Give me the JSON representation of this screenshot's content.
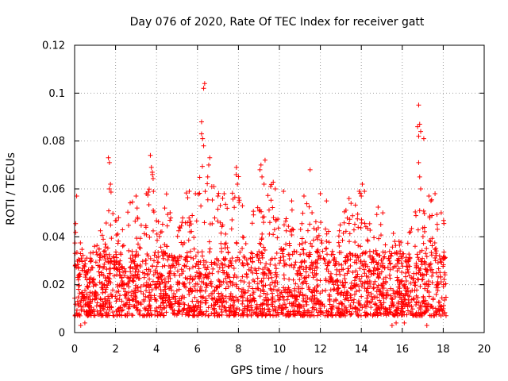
{
  "chart_data": {
    "type": "scatter",
    "title": "Day 076 of 2020, Rate Of TEC Index for receiver gatt",
    "xlabel": "GPS time / hours",
    "ylabel": "ROTI / TECUs",
    "xlim": [
      0,
      20
    ],
    "ylim": [
      0,
      0.12
    ],
    "xticks": [
      0,
      2,
      4,
      6,
      8,
      10,
      12,
      14,
      16,
      18,
      20
    ],
    "yticks": [
      0,
      0.02,
      0.04,
      0.06,
      0.08,
      0.1,
      0.12
    ],
    "xtick_labels": [
      "0",
      "2",
      "4",
      "6",
      "8",
      "10",
      "12",
      "14",
      "16",
      "18",
      "20"
    ],
    "ytick_labels": [
      "0",
      "0.02",
      "0.04",
      "0.06",
      "0.08",
      "0.1",
      "0.12"
    ],
    "grid": true,
    "marker": "+",
    "color": "#ff0000",
    "series": [
      {
        "name": "ROTI",
        "x_range": [
          0.0,
          18.15
        ],
        "baseline_y_range": [
          0.003,
          0.03
        ],
        "envelope": [
          [
            0.0,
            0.05
          ],
          [
            0.3,
            0.035
          ],
          [
            0.6,
            0.03
          ],
          [
            1.0,
            0.03
          ],
          [
            1.5,
            0.045
          ],
          [
            1.7,
            0.06
          ],
          [
            2.0,
            0.045
          ],
          [
            2.5,
            0.045
          ],
          [
            3.0,
            0.05
          ],
          [
            3.5,
            0.045
          ],
          [
            3.8,
            0.06
          ],
          [
            4.2,
            0.045
          ],
          [
            4.5,
            0.05
          ],
          [
            5.0,
            0.045
          ],
          [
            5.5,
            0.05
          ],
          [
            6.0,
            0.055
          ],
          [
            6.4,
            0.065
          ],
          [
            7.0,
            0.05
          ],
          [
            7.5,
            0.055
          ],
          [
            8.0,
            0.06
          ],
          [
            8.5,
            0.035
          ],
          [
            9.0,
            0.055
          ],
          [
            9.5,
            0.055
          ],
          [
            10.0,
            0.05
          ],
          [
            10.5,
            0.045
          ],
          [
            11.0,
            0.05
          ],
          [
            11.5,
            0.045
          ],
          [
            12.0,
            0.05
          ],
          [
            12.5,
            0.035
          ],
          [
            13.0,
            0.04
          ],
          [
            13.5,
            0.055
          ],
          [
            14.0,
            0.055
          ],
          [
            14.5,
            0.05
          ],
          [
            15.0,
            0.045
          ],
          [
            15.5,
            0.035
          ],
          [
            16.0,
            0.035
          ],
          [
            16.5,
            0.04
          ],
          [
            17.0,
            0.055
          ],
          [
            17.5,
            0.05
          ],
          [
            18.15,
            0.045
          ]
        ],
        "outliers": [
          [
            0.1,
            0.057
          ],
          [
            1.65,
            0.073
          ],
          [
            1.7,
            0.071
          ],
          [
            1.75,
            0.062
          ],
          [
            1.7,
            0.06
          ],
          [
            3.0,
            0.057
          ],
          [
            3.05,
            0.052
          ],
          [
            3.5,
            0.058
          ],
          [
            3.7,
            0.074
          ],
          [
            3.75,
            0.069
          ],
          [
            3.8,
            0.066
          ],
          [
            3.85,
            0.059
          ],
          [
            4.4,
            0.052
          ],
          [
            5.6,
            0.059
          ],
          [
            5.9,
            0.058
          ],
          [
            6.2,
            0.088
          ],
          [
            6.3,
            0.102
          ],
          [
            6.35,
            0.104
          ],
          [
            6.2,
            0.083
          ],
          [
            6.25,
            0.081
          ],
          [
            6.3,
            0.078
          ],
          [
            6.5,
            0.065
          ],
          [
            6.55,
            0.07
          ],
          [
            6.6,
            0.073
          ],
          [
            6.7,
            0.061
          ],
          [
            6.8,
            0.061
          ],
          [
            7.0,
            0.057
          ],
          [
            7.3,
            0.058
          ],
          [
            7.9,
            0.069
          ],
          [
            7.95,
            0.062
          ],
          [
            9.05,
            0.068
          ],
          [
            9.1,
            0.07
          ],
          [
            9.15,
            0.065
          ],
          [
            9.3,
            0.072
          ],
          [
            9.25,
            0.062
          ],
          [
            9.8,
            0.06
          ],
          [
            10.2,
            0.059
          ],
          [
            10.6,
            0.055
          ],
          [
            11.2,
            0.057
          ],
          [
            11.5,
            0.068
          ],
          [
            12.0,
            0.058
          ],
          [
            12.3,
            0.055
          ],
          [
            13.4,
            0.056
          ],
          [
            13.5,
            0.054
          ],
          [
            13.9,
            0.059
          ],
          [
            14.05,
            0.062
          ],
          [
            14.0,
            0.057
          ],
          [
            15.05,
            0.05
          ],
          [
            16.8,
            0.095
          ],
          [
            16.75,
            0.086
          ],
          [
            16.85,
            0.087
          ],
          [
            16.9,
            0.084
          ],
          [
            16.8,
            0.082
          ],
          [
            16.8,
            0.071
          ],
          [
            16.85,
            0.065
          ],
          [
            16.9,
            0.06
          ],
          [
            17.05,
            0.081
          ],
          [
            17.3,
            0.057
          ],
          [
            17.4,
            0.055
          ],
          [
            17.6,
            0.058
          ],
          [
            17.9,
            0.05
          ],
          [
            15.5,
            0.003
          ],
          [
            15.7,
            0.004
          ],
          [
            16.1,
            0.004
          ],
          [
            0.3,
            0.003
          ],
          [
            0.5,
            0.004
          ],
          [
            17.2,
            0.003
          ]
        ]
      }
    ]
  }
}
